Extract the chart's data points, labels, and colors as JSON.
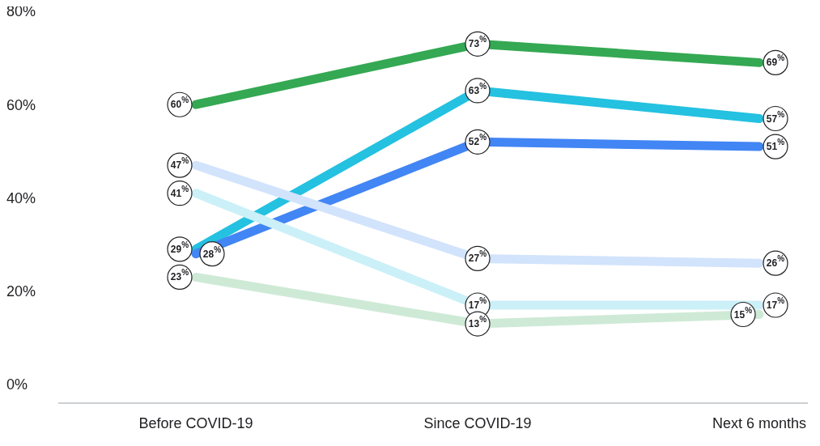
{
  "chart_data": {
    "type": "line",
    "categories": [
      "Before COVID-19",
      "Since COVID-19",
      "Next 6 months"
    ],
    "ylim": [
      -4,
      80
    ],
    "yticks": [
      {
        "value": 0,
        "label": "0%"
      },
      {
        "value": 20,
        "label": "20%"
      },
      {
        "value": 40,
        "label": "40%"
      },
      {
        "value": 60,
        "label": "60%"
      },
      {
        "value": 80,
        "label": "80%"
      }
    ],
    "grid": false,
    "legend": false,
    "marker": "circle",
    "line_style": "solid",
    "series": [
      {
        "color": "#34a853",
        "values": [
          60,
          73,
          69
        ],
        "value_labels": [
          "60$^{%}$",
          "73$^{%}$",
          "69$^{%}$"
        ]
      },
      {
        "color": "#24c1e0",
        "values": [
          29,
          63,
          57
        ],
        "value_labels": [
          "29$^{%}$",
          "63$^{%}$",
          "57$^{%}$"
        ]
      },
      {
        "color": "#4285f4",
        "values": [
          28,
          52,
          51
        ],
        "value_labels": [
          "28$^{%}$",
          "52$^{%}$",
          "51$^{%}$"
        ]
      },
      {
        "color": "#d2e3fc",
        "values": [
          47,
          27,
          26
        ],
        "value_labels": [
          "47$^{%}$",
          "27$^{%}$",
          "26$^{%}$"
        ]
      },
      {
        "color": "#cbf0f8",
        "values": [
          41,
          17,
          17
        ],
        "value_labels": [
          "41$^{%}$",
          "17$^{%}$",
          "17$^{%}$"
        ]
      },
      {
        "color": "#ceead6",
        "values": [
          23,
          13,
          15
        ],
        "value_labels": [
          "23$^{%}$",
          "13$^{%}$",
          "15$^{%}$"
        ]
      }
    ]
  }
}
